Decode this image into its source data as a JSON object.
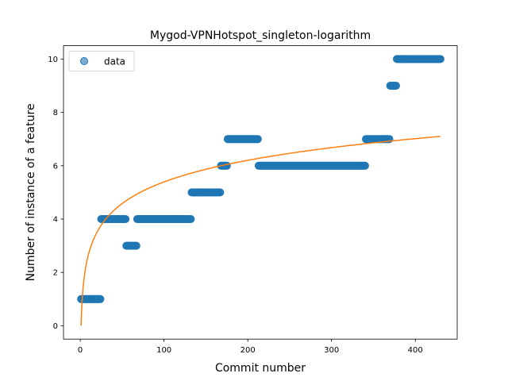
{
  "chart_data": {
    "type": "scatter",
    "title": "Mygod-VPNHotspot_singleton-logarithm",
    "xlabel": "Commit number",
    "ylabel": "Number of instance of a feature",
    "xlim": [
      -20,
      450
    ],
    "ylim": [
      -0.5,
      10.5
    ],
    "xticks": [
      0,
      100,
      200,
      300,
      400
    ],
    "yticks": [
      0,
      2,
      4,
      6,
      8,
      10
    ],
    "grid": false,
    "legend": {
      "position": "top-left",
      "entries": [
        {
          "label": "data",
          "kind": "marker"
        }
      ]
    },
    "step_segments": [
      {
        "x_start": 1,
        "x_end": 24,
        "y": 1
      },
      {
        "x_start": 25,
        "x_end": 54,
        "y": 4
      },
      {
        "x_start": 55,
        "x_end": 67,
        "y": 3
      },
      {
        "x_start": 68,
        "x_end": 132,
        "y": 4
      },
      {
        "x_start": 133,
        "x_end": 167,
        "y": 5
      },
      {
        "x_start": 168,
        "x_end": 175,
        "y": 6
      },
      {
        "x_start": 176,
        "x_end": 212,
        "y": 7
      },
      {
        "x_start": 213,
        "x_end": 340,
        "y": 6
      },
      {
        "x_start": 341,
        "x_end": 369,
        "y": 7
      },
      {
        "x_start": 370,
        "x_end": 377,
        "y": 9
      },
      {
        "x_start": 378,
        "x_end": 430,
        "y": 10
      }
    ],
    "fit": {
      "type": "logarithmic",
      "x_range": [
        1,
        430
      ],
      "y_at_start": 0.0,
      "y_at_end": 7.1
    },
    "colors": {
      "data": "#1f77b4",
      "fit": "#ff7f0e"
    }
  }
}
